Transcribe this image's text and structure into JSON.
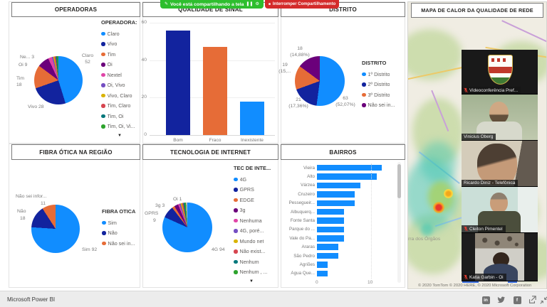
{
  "share_banner": {
    "sharing_text": "Você está compartilhando a tela",
    "stop_button_label": "Interromper Compartilhamento"
  },
  "icons": {
    "annotate": "✎",
    "pause": "❚❚",
    "gear": "⚙",
    "stop": "■",
    "scroll_down": "▼",
    "linkedin_glyph": "in",
    "facebook_glyph": "f"
  },
  "footer": {
    "brand": "Microsoft Power BI"
  },
  "map_panel": {
    "title": "MAPA DE CALOR DA QUALIDADE DE REDE",
    "place_label": "rra dos Órgãos",
    "scale_miles": "2 Meilen",
    "scale_km": "5 km",
    "attribution": "© 2020 TomTom © 2020 HERE, © 2020 Microsoft Corporation"
  },
  "video_rail": {
    "participants": [
      {
        "name": "Videoconferência Pref...",
        "muted": true,
        "type": "logo"
      },
      {
        "name": "Vinicius Oberg",
        "muted": false,
        "type": "camera"
      },
      {
        "name": "Ricardo Diniz - Telefônica",
        "muted": false,
        "type": "camera"
      },
      {
        "name": "Cleiton Pimentel",
        "muted": true,
        "type": "camera"
      },
      {
        "name": "Katia Garbin - Oi",
        "muted": true,
        "type": "camera"
      }
    ]
  },
  "chart_data": [
    {
      "id": "operadoras",
      "type": "pie",
      "title": "OPERADORAS",
      "legend_title": "OPERADORA:",
      "categories": [
        "Claro",
        "Vivo",
        "Tim",
        "Oi",
        "Nextel",
        "Oi, Vivo",
        "Vivo, Claro",
        "Tim, Claro",
        "Tim, Oi",
        "Tim, Oi, Vi..."
      ],
      "values": [
        52,
        28,
        18,
        9,
        3,
        1,
        1,
        1,
        1,
        1
      ],
      "colors": [
        "#118DFF",
        "#12239E",
        "#E66C37",
        "#6B007B",
        "#E044A7",
        "#744EC2",
        "#D9B300",
        "#D64550",
        "#02777B",
        "#2DA32D"
      ],
      "labels": {
        "claro": "Claro",
        "claro_value": "52",
        "vivo": "Vivo 28",
        "tim": "Tim",
        "tim_value": "18",
        "oi": "Oi 9",
        "nextel": "Ne... 3"
      }
    },
    {
      "id": "qualidade_de_sinal",
      "type": "bar",
      "title": "QUALIDADE DE SINAL",
      "categories": [
        "Bom",
        "Fraco",
        "Inexistente"
      ],
      "values": [
        56,
        47,
        18
      ],
      "colors": [
        "#12239E",
        "#E66C37",
        "#118DFF"
      ],
      "ylim": [
        0,
        60
      ],
      "yticks": [
        0,
        20,
        40,
        60
      ]
    },
    {
      "id": "distrito",
      "type": "pie",
      "title": "DISTRITO",
      "legend_title": "DISTRITO",
      "categories": [
        "1º Distrito",
        "2º Distrito",
        "3º Distrito",
        "Não sei in..."
      ],
      "values": [
        63,
        21,
        19,
        18
      ],
      "colors": [
        "#118DFF",
        "#12239E",
        "#E66C37",
        "#6B007B"
      ],
      "labels": {
        "d1": "63",
        "d1_pct": "(52,07%)",
        "d2": "21",
        "d2_pct": "(17,36%)",
        "d3": "19",
        "d3_pct": "(15,...",
        "ns": "18",
        "ns_pct": "(14,88%)"
      }
    },
    {
      "id": "fibra_otica_na_regiao",
      "type": "pie",
      "title": "FIBRA ÓTICA NA REGIÃO",
      "legend_title": "FIBRA OTICA",
      "categories": [
        "Sim",
        "Não",
        "Não sei in..."
      ],
      "values": [
        92,
        18,
        11
      ],
      "colors": [
        "#118DFF",
        "#12239E",
        "#E66C37"
      ],
      "labels": {
        "sim": "Sim 92",
        "nao": "Não",
        "nao_value": "18",
        "nao_sei": "Não sei infor...",
        "nao_sei_value": "11"
      }
    },
    {
      "id": "tecnologia_de_internet",
      "type": "pie",
      "title": "TECNOLOGIA DE INTERNET",
      "legend_title": "TEC DE INTE...",
      "categories": [
        "4G",
        "GPRS",
        "EDGE",
        "3g",
        "Nenhuma",
        "4G, poré...",
        "Mundo net",
        "Não exist...",
        "Nenhum",
        "Nenhum , ...",
        "Oi"
      ],
      "legend_items": [
        "4G",
        "GPRS",
        "EDGE",
        "3g",
        "Nenhuma",
        "4G, poré...",
        "Mundo net",
        "Não exist...",
        "Nenhum",
        "Nenhum , ..."
      ],
      "values": [
        94,
        9,
        2,
        3,
        1,
        1,
        1,
        1,
        1,
        1,
        1
      ],
      "colors": [
        "#118DFF",
        "#12239E",
        "#E66C37",
        "#6B007B",
        "#E044A7",
        "#744EC2",
        "#D9B300",
        "#D64550",
        "#02777B",
        "#2DA32D",
        "#B9B9B9"
      ],
      "labels": {
        "g4": "4G 94",
        "gprs": "GPRS",
        "gprs_value": "9",
        "g3": "3g 3",
        "oi": "Oi 1"
      }
    },
    {
      "id": "bairros",
      "type": "bar",
      "orientation": "horizontal",
      "title": "BAIRROS",
      "categories": [
        "Vieira",
        "Alto",
        "Várzea",
        "Cruzeiro",
        "Pessegueir...",
        "Albuquerq...",
        "Fonte Santa",
        "Parque do ...",
        "Vale do Pa...",
        "Araras",
        "São Pedro",
        "Agriões",
        "Água Que..."
      ],
      "values": [
        12,
        11,
        8,
        7,
        7,
        5,
        5,
        5,
        5,
        4,
        4,
        2,
        2
      ],
      "xticks": [
        0,
        10
      ],
      "color": "#118DFF"
    }
  ]
}
